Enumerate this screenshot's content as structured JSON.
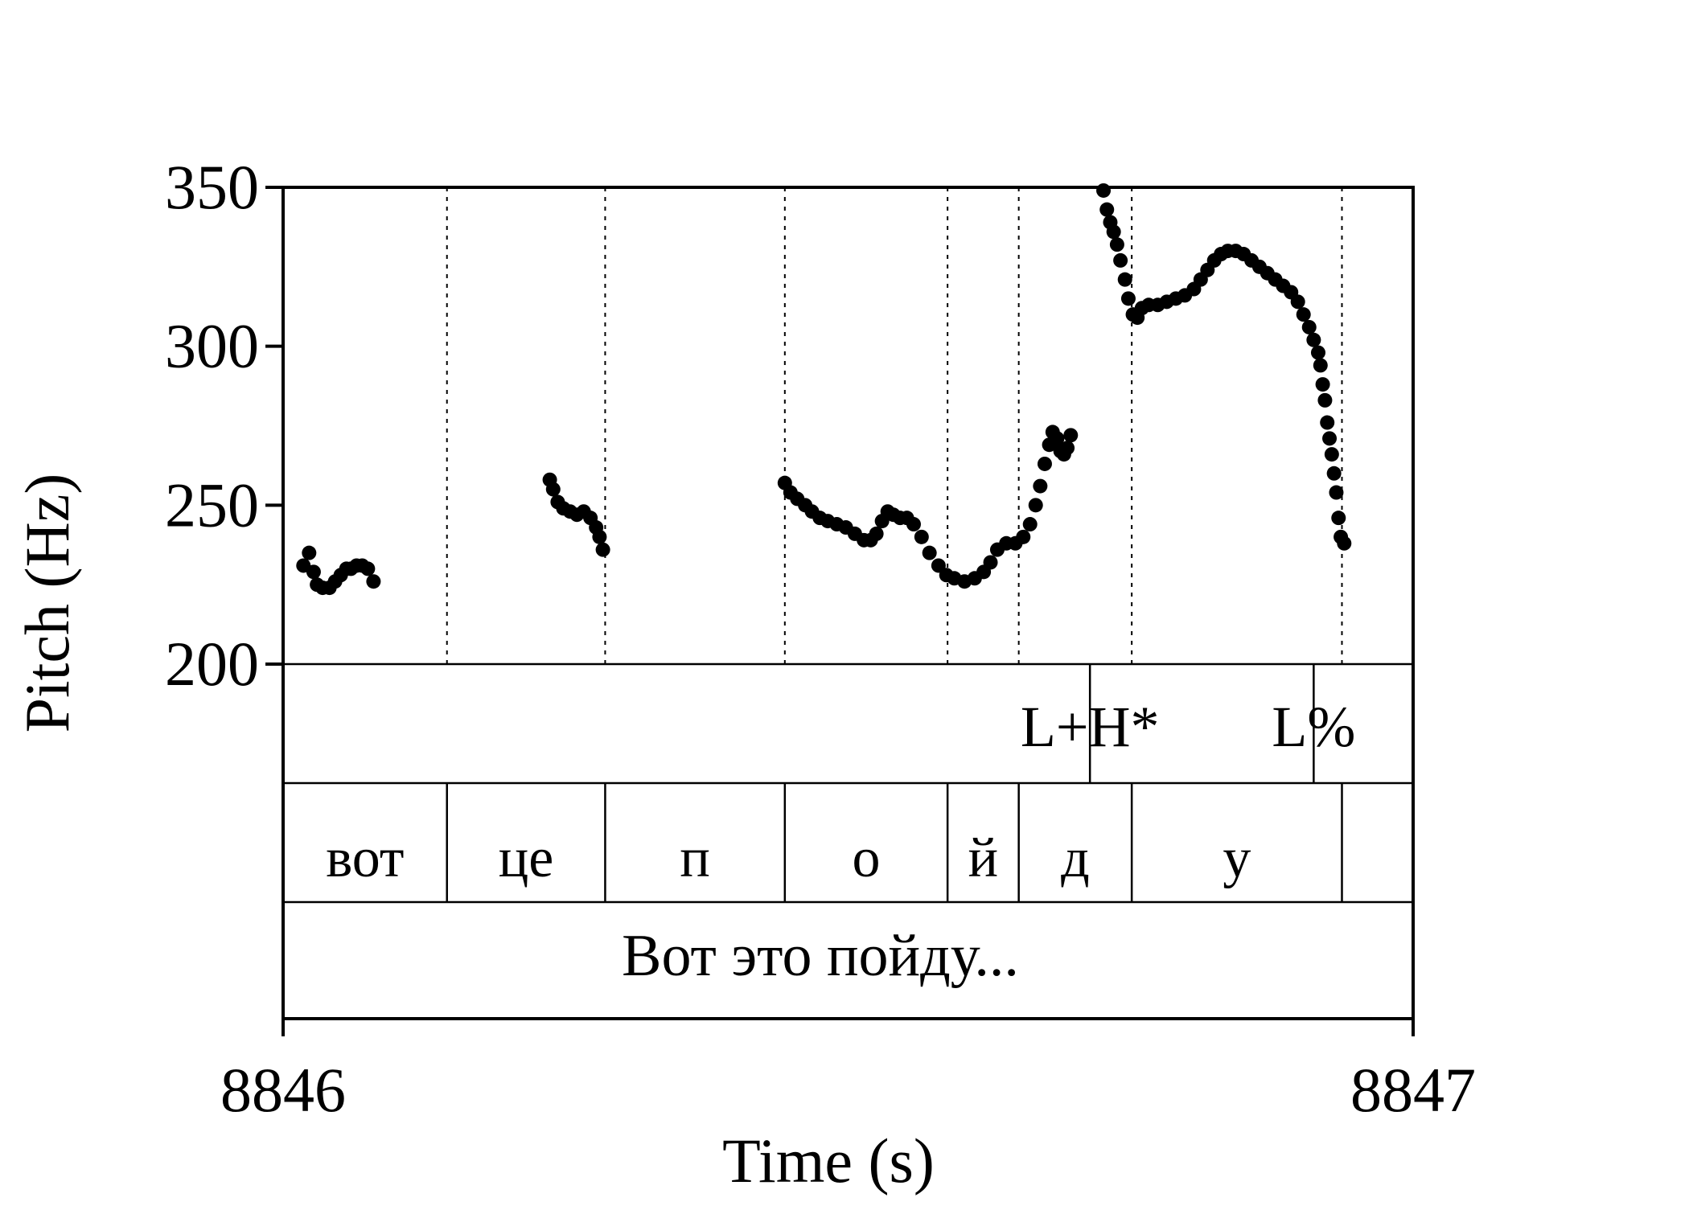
{
  "chart_data": {
    "type": "scatter",
    "xlabel": "Time (s)",
    "ylabel": "Pitch (Hz)",
    "xlim": [
      8846,
      8847
    ],
    "ylim": [
      200,
      350
    ],
    "x_ticks": [
      "8846",
      "8847"
    ],
    "y_ticks": [
      "200",
      "250",
      "300",
      "350"
    ],
    "point_color": "#000000",
    "segment_boundaries": [
      0.145,
      0.285,
      0.444,
      0.588,
      0.651,
      0.751,
      0.937
    ],
    "tone_labels": [
      {
        "t": 0.714,
        "label": "L+H*"
      },
      {
        "t": 0.912,
        "label": "L%"
      }
    ],
    "segments": [
      {
        "label": "вот",
        "start": 0.0,
        "end": 0.145
      },
      {
        "label": "це",
        "start": 0.145,
        "end": 0.285
      },
      {
        "label": "п",
        "start": 0.285,
        "end": 0.444
      },
      {
        "label": "о",
        "start": 0.444,
        "end": 0.588
      },
      {
        "label": "й",
        "start": 0.588,
        "end": 0.651
      },
      {
        "label": "д",
        "start": 0.651,
        "end": 0.751
      },
      {
        "label": "у",
        "start": 0.751,
        "end": 0.937
      },
      {
        "label": "",
        "start": 0.937,
        "end": 1.0
      }
    ],
    "sentence": "Вот это пойду...",
    "series": [
      {
        "points": [
          [
            0.018,
            231
          ],
          [
            0.023,
            235
          ],
          [
            0.027,
            229
          ],
          [
            0.03,
            225
          ],
          [
            0.035,
            224
          ],
          [
            0.041,
            224
          ],
          [
            0.046,
            226
          ],
          [
            0.051,
            228
          ],
          [
            0.056,
            230
          ],
          [
            0.06,
            230
          ],
          [
            0.065,
            231
          ],
          [
            0.07,
            231
          ],
          [
            0.075,
            230
          ],
          [
            0.08,
            226
          ],
          [
            0.236,
            258
          ],
          [
            0.239,
            255
          ],
          [
            0.243,
            251
          ],
          [
            0.248,
            249
          ],
          [
            0.254,
            248
          ],
          [
            0.26,
            247
          ],
          [
            0.266,
            248
          ],
          [
            0.272,
            246
          ],
          [
            0.277,
            243
          ],
          [
            0.28,
            240
          ],
          [
            0.283,
            236
          ],
          [
            0.444,
            257
          ],
          [
            0.449,
            254
          ],
          [
            0.455,
            252
          ],
          [
            0.462,
            250
          ],
          [
            0.468,
            248
          ],
          [
            0.475,
            246
          ],
          [
            0.482,
            245
          ],
          [
            0.49,
            244
          ],
          [
            0.498,
            243
          ],
          [
            0.506,
            241
          ],
          [
            0.514,
            239
          ],
          [
            0.52,
            239
          ],
          [
            0.525,
            241
          ],
          [
            0.53,
            245
          ],
          [
            0.535,
            248
          ],
          [
            0.54,
            247
          ],
          [
            0.546,
            246
          ],
          [
            0.552,
            246
          ],
          [
            0.558,
            244
          ],
          [
            0.565,
            240
          ],
          [
            0.572,
            235
          ],
          [
            0.58,
            231
          ],
          [
            0.587,
            228
          ],
          [
            0.594,
            227
          ],
          [
            0.603,
            226
          ],
          [
            0.612,
            227
          ],
          [
            0.62,
            229
          ],
          [
            0.626,
            232
          ],
          [
            0.632,
            236
          ],
          [
            0.64,
            238
          ],
          [
            0.648,
            238
          ],
          [
            0.655,
            240
          ],
          [
            0.661,
            244
          ],
          [
            0.666,
            250
          ],
          [
            0.67,
            256
          ],
          [
            0.674,
            263
          ],
          [
            0.678,
            269
          ],
          [
            0.681,
            273
          ],
          [
            0.685,
            271
          ],
          [
            0.688,
            267
          ],
          [
            0.691,
            266
          ],
          [
            0.694,
            268
          ],
          [
            0.697,
            272
          ],
          [
            0.726,
            349
          ],
          [
            0.729,
            343
          ],
          [
            0.732,
            339
          ],
          [
            0.735,
            336
          ],
          [
            0.738,
            332
          ],
          [
            0.741,
            327
          ],
          [
            0.745,
            321
          ],
          [
            0.748,
            315
          ],
          [
            0.752,
            310
          ],
          [
            0.756,
            309
          ],
          [
            0.76,
            312
          ],
          [
            0.766,
            313
          ],
          [
            0.774,
            313
          ],
          [
            0.782,
            314
          ],
          [
            0.79,
            315
          ],
          [
            0.798,
            316
          ],
          [
            0.806,
            318
          ],
          [
            0.812,
            321
          ],
          [
            0.818,
            324
          ],
          [
            0.824,
            327
          ],
          [
            0.83,
            329
          ],
          [
            0.836,
            330
          ],
          [
            0.843,
            330
          ],
          [
            0.85,
            329
          ],
          [
            0.857,
            327
          ],
          [
            0.864,
            325
          ],
          [
            0.871,
            323
          ],
          [
            0.878,
            321
          ],
          [
            0.885,
            319
          ],
          [
            0.892,
            317
          ],
          [
            0.898,
            314
          ],
          [
            0.903,
            310
          ],
          [
            0.908,
            306
          ],
          [
            0.912,
            302
          ],
          [
            0.916,
            298
          ],
          [
            0.918,
            294
          ],
          [
            0.92,
            288
          ],
          [
            0.922,
            283
          ],
          [
            0.924,
            276
          ],
          [
            0.926,
            271
          ],
          [
            0.928,
            266
          ],
          [
            0.93,
            260
          ],
          [
            0.932,
            254
          ],
          [
            0.934,
            246
          ],
          [
            0.936,
            240
          ],
          [
            0.939,
            238
          ]
        ]
      }
    ]
  }
}
